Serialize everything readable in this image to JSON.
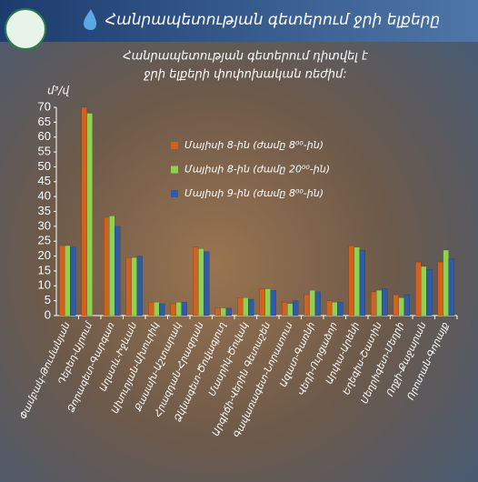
{
  "chart_data": {
    "type": "bar",
    "title": "Հանրապետության գետերում ջրի ելքերը",
    "subtitle": [
      "Հանրապետության գետերում  դիտվել է",
      "ջրի ելքերի փոփոխական ռեժիմ:"
    ],
    "y_label": "մ³/վ",
    "categories": [
      "Փամբակ-Թումանյան",
      "Դեբեդ-Այրում",
      "Ձորագետ-Գարգառ",
      "Աղստև-Իջևան",
      "Ախուրյան-Ախուրիկ",
      "Քասախ-Աշտարակ",
      "Հրազդան-Հրազդան",
      "Ձկնագետ-Ծովագյուղ",
      "Մասրիկ-Ծովակ",
      "Արգիճի-Վերին Գետաշեն",
      "Գավառագետ-Նորատուս",
      "Ազատ-Գառնի",
      "Վեդի-Ուրցաձոր",
      "Արփա-Արենի",
      "Եղեգիս-Շատին",
      "Մեղրիգետ-Մեղրի",
      "Ողջի-Քաջարան",
      "Որոտան-Գորայք"
    ],
    "series": [
      {
        "name": "Մայիսի 8-ին (ժամը 8⁰⁰-ին)",
        "color": "#d2601e",
        "values": [
          23.5,
          70,
          33,
          19.5,
          4.5,
          4,
          23,
          2.5,
          6,
          9,
          4.5,
          7,
          5,
          23.5,
          8,
          7,
          18,
          18
        ]
      },
      {
        "name": "Մայիսի 8-ին (ժամը 20⁰⁰-ին)",
        "color": "#8fd150",
        "values": [
          23.5,
          68,
          33.5,
          19.5,
          4.5,
          4.5,
          22.5,
          2.5,
          6,
          9,
          4,
          8.5,
          4.5,
          23,
          8.5,
          6,
          16.5,
          22
        ]
      },
      {
        "name": "Մայիսի 9-ին (ժամը 8⁰⁰-ին)",
        "color": "#2e5ca6",
        "values": [
          23,
          null,
          30,
          20,
          4,
          4.5,
          21.5,
          2.5,
          5.5,
          8.5,
          5,
          8,
          4.5,
          22,
          9,
          7,
          15.5,
          19
        ]
      }
    ],
    "ylim": [
      0,
      70
    ],
    "yticks": [
      0,
      5,
      10,
      15,
      20,
      25,
      30,
      35,
      40,
      45,
      50,
      55,
      60,
      65,
      70
    ]
  }
}
